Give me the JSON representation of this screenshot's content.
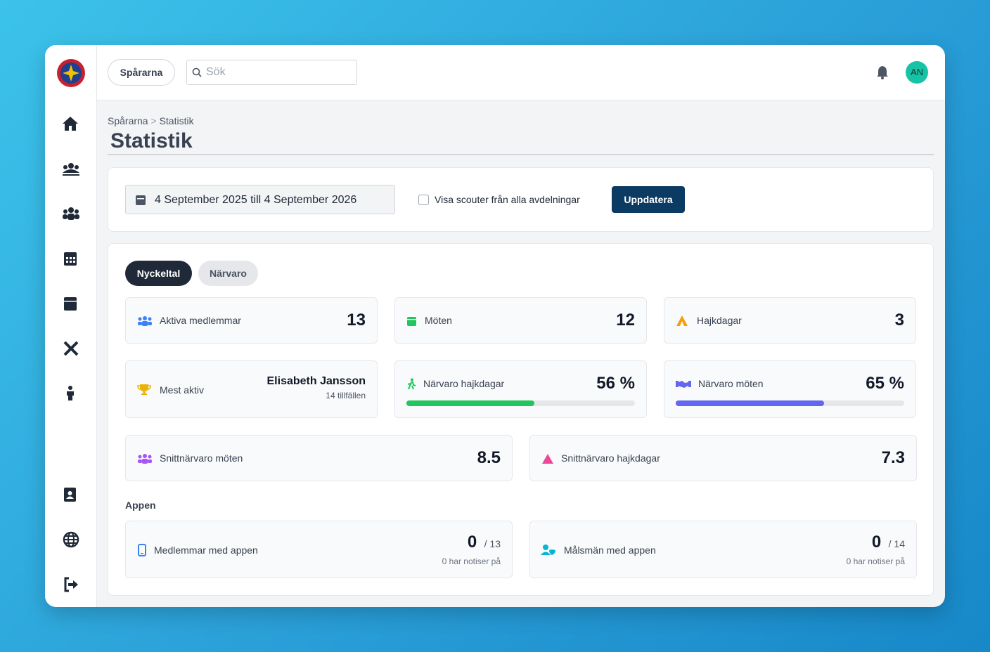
{
  "header": {
    "org_button": "Spårarna",
    "search_placeholder": "Sök",
    "avatar": "AN"
  },
  "breadcrumb": [
    "Spårarna",
    "Statistik"
  ],
  "title": "Statistik",
  "filter": {
    "date_range": "4 September 2025 till 4 September 2026",
    "checkbox_label": "Visa scouter från alla avdelningar",
    "button": "Uppdatera"
  },
  "tabs": [
    "Nyckeltal",
    "Närvaro"
  ],
  "stats": {
    "active_members": {
      "label": "Aktiva medlemmar",
      "value": 13
    },
    "meetings": {
      "label": "Möten",
      "value": 12
    },
    "hike_days": {
      "label": "Hajkdagar",
      "value": 3
    },
    "most_active": {
      "label": "Mest aktiv",
      "name": "Elisabeth Jansson",
      "detail": "14 tillfällen"
    },
    "attendance_hike_days": {
      "label": "Närvaro hajkdagar",
      "value": 56,
      "value_label": "56 %"
    },
    "attendance_meetings": {
      "label": "Närvaro möten",
      "value": 65,
      "value_label": "65 %"
    },
    "avg_attendance_meetings": {
      "label": "Snittnärvaro möten",
      "value": 8.5
    },
    "avg_attendance_hike_days": {
      "label": "Snittnärvaro hajkdagar",
      "value": 7.3
    }
  },
  "app_section": {
    "title": "Appen",
    "members_with_app": {
      "label": "Medlemmar med appen",
      "value": 0,
      "total": "/ 13",
      "notifications": "0 har notiser på"
    },
    "guardians_with_app": {
      "label": "Målsmän med appen",
      "value": 0,
      "total": "/ 14",
      "notifications": "0 har notiser på"
    }
  }
}
